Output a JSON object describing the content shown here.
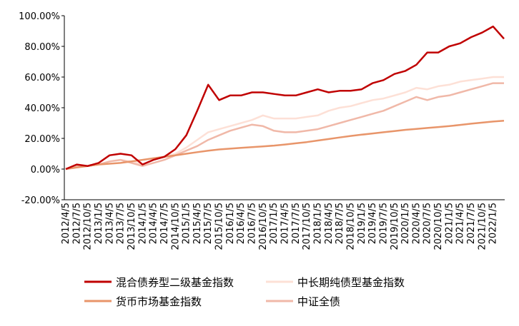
{
  "chart_data": {
    "type": "line",
    "categories": [
      "2012/4/5",
      "2012/7/5",
      "2012/10/5",
      "2013/1/5",
      "2013/4/5",
      "2013/7/5",
      "2013/10/5",
      "2014/1/5",
      "2014/4/5",
      "2014/7/5",
      "2014/10/5",
      "2015/1/5",
      "2015/4/5",
      "2015/7/5",
      "2015/10/5",
      "2016/1/5",
      "2016/4/5",
      "2016/7/5",
      "2016/10/5",
      "2017/1/5",
      "2017/4/5",
      "2017/7/5",
      "2017/10/5",
      "2018/1/5",
      "2018/4/5",
      "2018/7/5",
      "2018/10/5",
      "2019/1/5",
      "2019/4/5",
      "2019/7/5",
      "2019/10/5",
      "2020/1/5",
      "2020/4/5",
      "2020/7/5",
      "2020/10/5",
      "2021/1/5",
      "2021/4/5",
      "2021/7/5",
      "2021/10/5",
      "2022/1/5",
      null
    ],
    "series": [
      {
        "name": "混合债券型二级基金指数",
        "color": "#c00000",
        "values": [
          0,
          3,
          2,
          4,
          9,
          10,
          9,
          3,
          6,
          8,
          13,
          22,
          38,
          55,
          45,
          48,
          48,
          50,
          50,
          49,
          48,
          48,
          50,
          52,
          50,
          51,
          51,
          52,
          56,
          58,
          62,
          64,
          68,
          76,
          76,
          80,
          82,
          86,
          89,
          93,
          85
        ]
      },
      {
        "name": "中长期纯债型基金指数",
        "color": "#fde0d6",
        "values": [
          0,
          2,
          2,
          3,
          5,
          6,
          5,
          3,
          6,
          8,
          10,
          14,
          19,
          24,
          26,
          28,
          30,
          32,
          35,
          33,
          33,
          33,
          34,
          35,
          38,
          40,
          41,
          43,
          45,
          46,
          48,
          50,
          53,
          52,
          54,
          55,
          57,
          58,
          59,
          60,
          60
        ]
      },
      {
        "name": "货币市场基金指数",
        "color": "#e8956a",
        "values": [
          0,
          1,
          2,
          3,
          3.5,
          4,
          5,
          6,
          7,
          8,
          9,
          10,
          11,
          12,
          12.8,
          13.3,
          13.8,
          14.3,
          14.8,
          15.3,
          16,
          16.8,
          17.6,
          18.6,
          19.6,
          20.6,
          21.6,
          22.4,
          23.2,
          24,
          24.8,
          25.6,
          26.2,
          26.8,
          27.4,
          28,
          28.8,
          29.6,
          30.3,
          31,
          31.5
        ]
      },
      {
        "name": "中证全债",
        "color": "#f0b8a8",
        "values": [
          0,
          2,
          2,
          3,
          5,
          6,
          4,
          2,
          4,
          6,
          9,
          12,
          15,
          19,
          22,
          25,
          27,
          29,
          28,
          25,
          24,
          24,
          25,
          26,
          28,
          30,
          32,
          34,
          36,
          38,
          41,
          44,
          47,
          45,
          47,
          48,
          50,
          52,
          54,
          56,
          56
        ]
      }
    ],
    "ylim": [
      -20,
      100
    ],
    "yticks": [
      {
        "value": -20,
        "label": "-20.00%"
      },
      {
        "value": 0,
        "label": "0.00%"
      },
      {
        "value": 20,
        "label": "20.00%"
      },
      {
        "value": 40,
        "label": "40.00%"
      },
      {
        "value": 60,
        "label": "60.00%"
      },
      {
        "value": 80,
        "label": "80.00%"
      },
      {
        "value": 100,
        "label": "100.00%"
      }
    ]
  }
}
